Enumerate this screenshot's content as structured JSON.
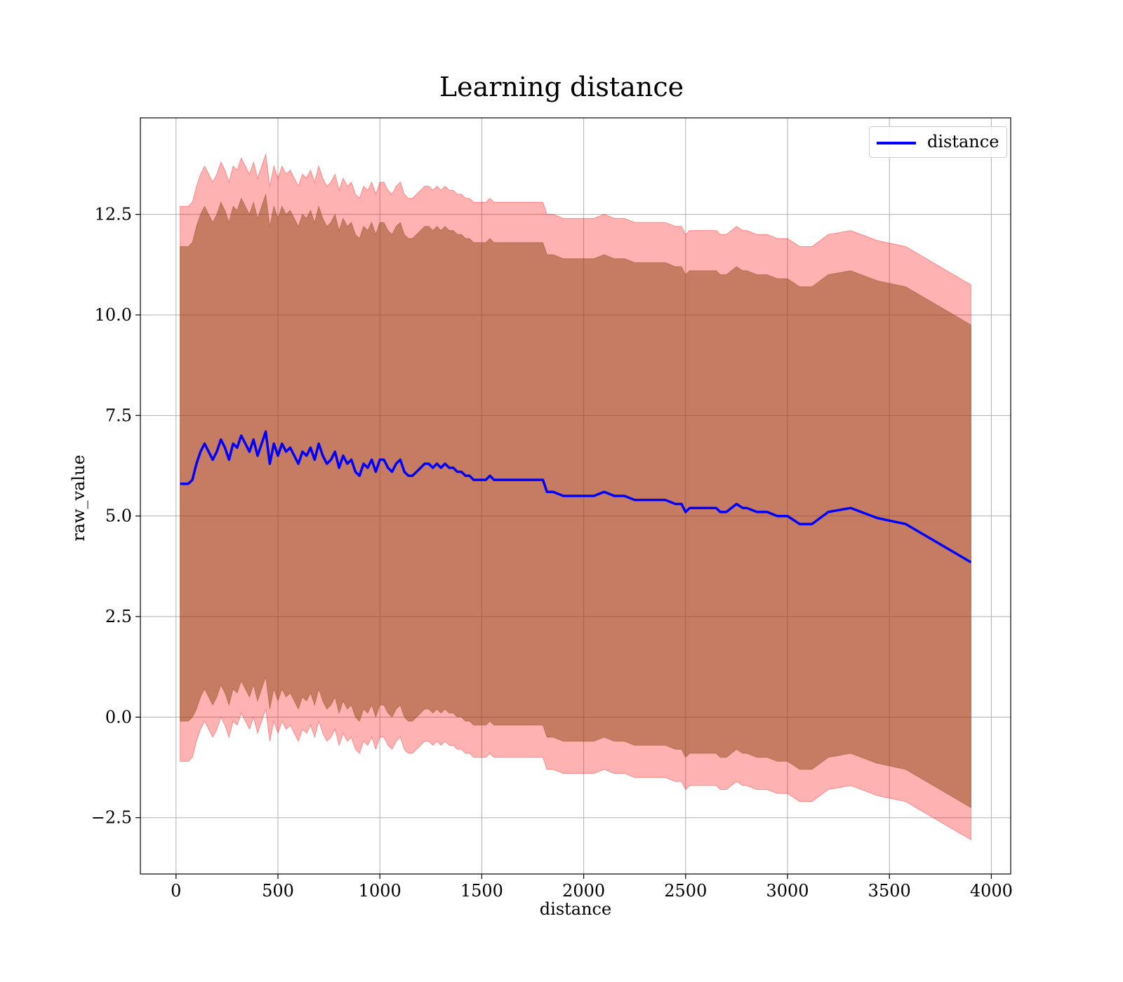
{
  "chart_data": {
    "type": "line",
    "title": "Learning distance",
    "xlabel": "distance",
    "ylabel": "raw_value",
    "xlim": [
      -175,
      4095
    ],
    "ylim": [
      -3.9,
      14.9
    ],
    "xticks": [
      0,
      500,
      1000,
      1500,
      2000,
      2500,
      3000,
      3500,
      4000
    ],
    "xtick_labels": [
      "0",
      "500",
      "1000",
      "1500",
      "2000",
      "2500",
      "3000",
      "3500",
      "4000"
    ],
    "yticks": [
      -2.5,
      0.0,
      2.5,
      5.0,
      7.5,
      10.0,
      12.5
    ],
    "ytick_labels": [
      "−2.5",
      "0.0",
      "2.5",
      "5.0",
      "7.5",
      "10.0",
      "12.5"
    ],
    "grid": true,
    "legend": {
      "position": "top-right",
      "entries": [
        "distance"
      ]
    },
    "colors": {
      "line": "#0000ff",
      "band": "#ff0000",
      "inner_band": "#8b4513",
      "grid": "#b0b0b0"
    },
    "series": [
      {
        "name": "distance",
        "x": [
          20,
          60,
          80,
          100,
          120,
          140,
          160,
          180,
          200,
          220,
          240,
          260,
          280,
          300,
          320,
          340,
          360,
          380,
          400,
          420,
          440,
          460,
          480,
          500,
          520,
          540,
          560,
          580,
          600,
          620,
          640,
          660,
          680,
          700,
          720,
          740,
          760,
          780,
          800,
          820,
          840,
          860,
          880,
          900,
          920,
          940,
          960,
          980,
          1000,
          1020,
          1040,
          1060,
          1080,
          1100,
          1120,
          1140,
          1160,
          1180,
          1200,
          1220,
          1240,
          1260,
          1280,
          1300,
          1320,
          1340,
          1360,
          1380,
          1400,
          1420,
          1440,
          1460,
          1480,
          1500,
          1520,
          1540,
          1560,
          1580,
          1600,
          1620,
          1640,
          1660,
          1680,
          1700,
          1720,
          1740,
          1760,
          1780,
          1800,
          1820,
          1850,
          1900,
          1950,
          2000,
          2050,
          2100,
          2150,
          2200,
          2250,
          2300,
          2350,
          2400,
          2450,
          2480,
          2500,
          2520,
          2550,
          2600,
          2650,
          2670,
          2700,
          2750,
          2780,
          2800,
          2850,
          2900,
          2950,
          3000,
          3060,
          3120,
          3200,
          3310,
          3440,
          3580,
          3900
        ],
        "y": [
          5.8,
          5.8,
          5.9,
          6.3,
          6.6,
          6.8,
          6.6,
          6.4,
          6.6,
          6.9,
          6.7,
          6.4,
          6.8,
          6.7,
          7.0,
          6.8,
          6.6,
          6.9,
          6.5,
          6.8,
          7.1,
          6.3,
          6.8,
          6.5,
          6.8,
          6.6,
          6.7,
          6.5,
          6.3,
          6.6,
          6.5,
          6.7,
          6.4,
          6.8,
          6.5,
          6.3,
          6.4,
          6.6,
          6.2,
          6.5,
          6.3,
          6.4,
          6.1,
          6.0,
          6.3,
          6.2,
          6.4,
          6.1,
          6.4,
          6.4,
          6.2,
          6.1,
          6.3,
          6.4,
          6.1,
          6.0,
          6.0,
          6.1,
          6.2,
          6.3,
          6.3,
          6.2,
          6.3,
          6.2,
          6.3,
          6.2,
          6.2,
          6.1,
          6.1,
          6.0,
          6.0,
          5.9,
          5.9,
          5.9,
          5.9,
          6.0,
          5.9,
          5.9,
          5.9,
          5.9,
          5.9,
          5.9,
          5.9,
          5.9,
          5.9,
          5.9,
          5.9,
          5.9,
          5.9,
          5.6,
          5.6,
          5.5,
          5.5,
          5.5,
          5.5,
          5.6,
          5.5,
          5.5,
          5.4,
          5.4,
          5.4,
          5.4,
          5.3,
          5.3,
          5.1,
          5.2,
          5.2,
          5.2,
          5.2,
          5.1,
          5.1,
          5.3,
          5.2,
          5.2,
          5.1,
          5.1,
          5.0,
          5.0,
          4.8,
          4.8,
          5.1,
          5.2,
          4.95,
          4.8,
          3.85
        ],
        "inner_lower": [
          -0.1,
          -0.1,
          0.0,
          0.2,
          0.5,
          0.7,
          0.5,
          0.3,
          0.5,
          0.8,
          0.6,
          0.3,
          0.7,
          0.6,
          0.9,
          0.7,
          0.5,
          0.8,
          0.4,
          0.7,
          1.0,
          0.2,
          0.7,
          0.4,
          0.7,
          0.5,
          0.6,
          0.4,
          0.2,
          0.5,
          0.4,
          0.6,
          0.3,
          0.7,
          0.4,
          0.2,
          0.3,
          0.5,
          0.1,
          0.4,
          0.2,
          0.3,
          0.0,
          -0.1,
          0.2,
          0.1,
          0.3,
          0.0,
          0.3,
          0.3,
          0.1,
          0.0,
          0.2,
          0.3,
          0.0,
          -0.1,
          -0.1,
          0.0,
          0.1,
          0.2,
          0.2,
          0.1,
          0.2,
          0.1,
          0.2,
          0.1,
          0.1,
          0.0,
          0.0,
          -0.1,
          -0.1,
          -0.2,
          -0.2,
          -0.2,
          -0.2,
          -0.1,
          -0.2,
          -0.2,
          -0.2,
          -0.2,
          -0.2,
          -0.2,
          -0.2,
          -0.2,
          -0.2,
          -0.2,
          -0.2,
          -0.2,
          -0.2,
          -0.5,
          -0.5,
          -0.6,
          -0.6,
          -0.6,
          -0.6,
          -0.5,
          -0.6,
          -0.6,
          -0.7,
          -0.7,
          -0.7,
          -0.7,
          -0.8,
          -0.8,
          -1.0,
          -0.9,
          -0.9,
          -0.9,
          -0.9,
          -1.0,
          -1.0,
          -0.8,
          -0.9,
          -0.9,
          -1.0,
          -1.0,
          -1.1,
          -1.1,
          -1.3,
          -1.3,
          -1.0,
          -0.9,
          -1.15,
          -1.3,
          -2.25
        ],
        "inner_upper": [
          11.7,
          11.7,
          11.8,
          12.2,
          12.5,
          12.7,
          12.5,
          12.3,
          12.5,
          12.8,
          12.6,
          12.3,
          12.7,
          12.6,
          12.9,
          12.7,
          12.5,
          12.8,
          12.4,
          12.7,
          13.0,
          12.2,
          12.7,
          12.4,
          12.7,
          12.5,
          12.6,
          12.4,
          12.2,
          12.5,
          12.4,
          12.6,
          12.3,
          12.7,
          12.4,
          12.2,
          12.3,
          12.5,
          12.1,
          12.4,
          12.2,
          12.3,
          12.0,
          11.9,
          12.2,
          12.1,
          12.3,
          12.0,
          12.3,
          12.3,
          12.1,
          12.0,
          12.2,
          12.3,
          12.0,
          11.9,
          11.9,
          12.0,
          12.1,
          12.2,
          12.2,
          12.1,
          12.2,
          12.1,
          12.2,
          12.1,
          12.1,
          12.0,
          12.0,
          11.9,
          11.9,
          11.8,
          11.8,
          11.8,
          11.8,
          11.9,
          11.8,
          11.8,
          11.8,
          11.8,
          11.8,
          11.8,
          11.8,
          11.8,
          11.8,
          11.8,
          11.8,
          11.8,
          11.8,
          11.5,
          11.5,
          11.4,
          11.4,
          11.4,
          11.4,
          11.5,
          11.4,
          11.4,
          11.3,
          11.3,
          11.3,
          11.3,
          11.2,
          11.2,
          11.0,
          11.1,
          11.1,
          11.1,
          11.1,
          11.0,
          11.0,
          11.2,
          11.1,
          11.1,
          11.0,
          11.0,
          10.9,
          10.9,
          10.7,
          10.7,
          11.0,
          11.1,
          10.85,
          10.7,
          9.75
        ],
        "outer_lower": [
          -1.1,
          -1.1,
          -1.0,
          -0.6,
          -0.3,
          -0.1,
          -0.3,
          -0.5,
          -0.3,
          0.0,
          -0.2,
          -0.5,
          -0.1,
          -0.2,
          0.1,
          -0.1,
          -0.3,
          0.0,
          -0.4,
          -0.1,
          0.2,
          -0.6,
          -0.1,
          -0.4,
          -0.1,
          -0.3,
          -0.2,
          -0.4,
          -0.6,
          -0.3,
          -0.4,
          -0.2,
          -0.5,
          -0.1,
          -0.4,
          -0.6,
          -0.5,
          -0.3,
          -0.7,
          -0.4,
          -0.6,
          -0.5,
          -0.8,
          -0.9,
          -0.6,
          -0.7,
          -0.5,
          -0.8,
          -0.5,
          -0.5,
          -0.7,
          -0.8,
          -0.6,
          -0.5,
          -0.8,
          -0.9,
          -0.9,
          -0.8,
          -0.7,
          -0.6,
          -0.6,
          -0.7,
          -0.6,
          -0.7,
          -0.6,
          -0.7,
          -0.7,
          -0.8,
          -0.8,
          -0.9,
          -0.9,
          -1.0,
          -1.0,
          -1.0,
          -1.0,
          -0.9,
          -1.0,
          -1.0,
          -1.0,
          -1.0,
          -1.0,
          -1.0,
          -1.0,
          -1.0,
          -1.0,
          -1.0,
          -1.0,
          -1.0,
          -1.0,
          -1.3,
          -1.3,
          -1.4,
          -1.4,
          -1.4,
          -1.4,
          -1.3,
          -1.4,
          -1.4,
          -1.5,
          -1.5,
          -1.5,
          -1.5,
          -1.6,
          -1.6,
          -1.8,
          -1.7,
          -1.7,
          -1.7,
          -1.7,
          -1.8,
          -1.8,
          -1.6,
          -1.7,
          -1.7,
          -1.8,
          -1.8,
          -1.9,
          -1.9,
          -2.1,
          -2.1,
          -1.8,
          -1.7,
          -1.95,
          -2.1,
          -3.05
        ],
        "outer_upper": [
          12.7,
          12.7,
          12.8,
          13.2,
          13.5,
          13.7,
          13.5,
          13.3,
          13.5,
          13.8,
          13.6,
          13.3,
          13.7,
          13.6,
          13.9,
          13.7,
          13.5,
          13.8,
          13.4,
          13.7,
          14.0,
          13.2,
          13.7,
          13.4,
          13.7,
          13.5,
          13.6,
          13.4,
          13.2,
          13.5,
          13.4,
          13.6,
          13.3,
          13.7,
          13.4,
          13.2,
          13.3,
          13.5,
          13.1,
          13.4,
          13.2,
          13.3,
          13.0,
          12.9,
          13.2,
          13.1,
          13.3,
          13.0,
          13.3,
          13.3,
          13.1,
          13.0,
          13.2,
          13.3,
          13.0,
          12.9,
          12.9,
          13.0,
          13.1,
          13.2,
          13.2,
          13.1,
          13.2,
          13.1,
          13.2,
          13.1,
          13.1,
          13.0,
          13.0,
          12.9,
          12.9,
          12.8,
          12.8,
          12.8,
          12.8,
          12.9,
          12.8,
          12.8,
          12.8,
          12.8,
          12.8,
          12.8,
          12.8,
          12.8,
          12.8,
          12.8,
          12.8,
          12.8,
          12.8,
          12.5,
          12.5,
          12.4,
          12.4,
          12.4,
          12.4,
          12.5,
          12.4,
          12.4,
          12.3,
          12.3,
          12.3,
          12.3,
          12.2,
          12.2,
          12.0,
          12.1,
          12.1,
          12.1,
          12.1,
          12.0,
          12.0,
          12.2,
          12.1,
          12.1,
          12.0,
          12.0,
          11.9,
          11.9,
          11.7,
          11.7,
          12.0,
          12.1,
          11.85,
          11.7,
          10.75
        ]
      }
    ]
  }
}
